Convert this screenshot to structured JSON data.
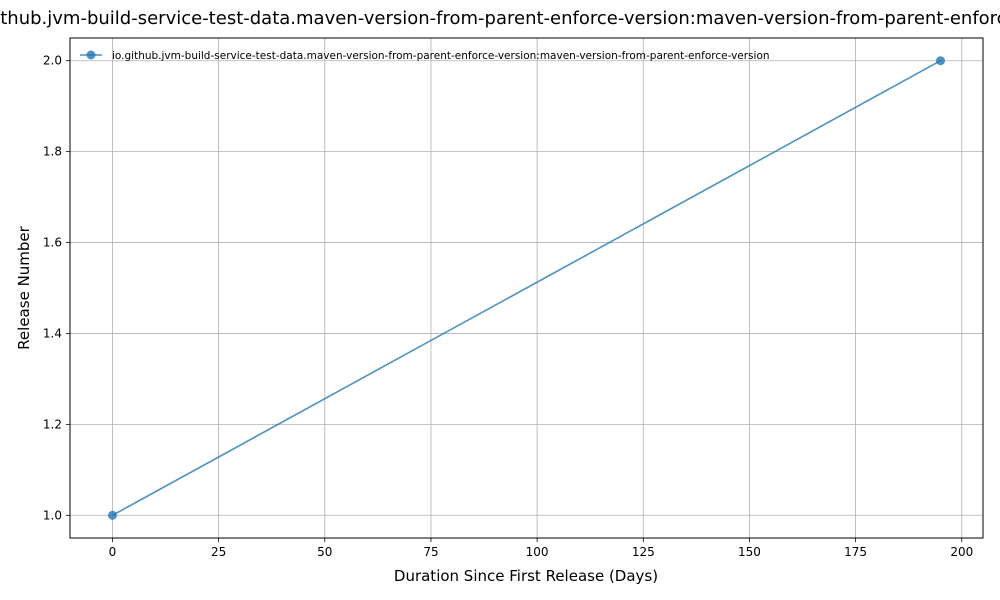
{
  "chart_data": {
    "type": "line",
    "title": "io.github.jvm-build-service-test-data.maven-version-from-parent-enforce-version:maven-version-from-parent-enforce-version",
    "xlabel": "Duration Since First Release (Days)",
    "ylabel": "Release Number",
    "xlim": [
      -10,
      205
    ],
    "ylim": [
      0.95,
      2.05
    ],
    "xticks": [
      0,
      25,
      50,
      75,
      100,
      125,
      150,
      175,
      200
    ],
    "yticks": [
      1.0,
      1.2,
      1.4,
      1.6,
      1.8,
      2.0
    ],
    "xtick_labels": [
      "0",
      "25",
      "50",
      "75",
      "100",
      "125",
      "150",
      "175",
      "200"
    ],
    "ytick_labels": [
      "1.0",
      "1.2",
      "1.4",
      "1.6",
      "1.8",
      "2.0"
    ],
    "grid": true,
    "legend_position": "top-left",
    "series": [
      {
        "name": "io.github.jvm-build-service-test-data.maven-version-from-parent-enforce-version:maven-version-from-parent-enforce-version",
        "color": "#1f77b4",
        "x": [
          0,
          195
        ],
        "y": [
          1,
          2
        ]
      }
    ]
  }
}
